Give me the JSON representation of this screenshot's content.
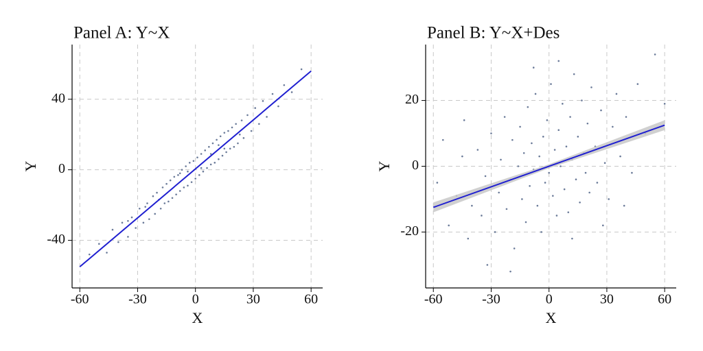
{
  "chart_data": [
    {
      "type": "scatter",
      "title": "Panel A: Y~X",
      "x_label": "X",
      "y_label": "Y",
      "xlim": [
        -64,
        66
      ],
      "ylim": [
        -67,
        71
      ],
      "xticks": [
        -60,
        -30,
        0,
        30,
        60
      ],
      "yticks": [
        -40,
        0,
        40
      ],
      "grid": true,
      "points": {
        "color": "#6b7b99",
        "x": [
          -55,
          -50,
          -46,
          -43,
          -40,
          -38,
          -35,
          -33,
          -31,
          -29,
          -27,
          -25,
          -24,
          -22,
          -21,
          -20,
          -18,
          -17,
          -16,
          -15,
          -14,
          -13,
          -12,
          -11,
          -10,
          -9,
          -8,
          -7,
          -6,
          -5,
          -4,
          -3,
          -2,
          -1,
          0,
          1,
          2,
          3,
          4,
          5,
          6,
          7,
          8,
          9,
          10,
          11,
          12,
          13,
          14,
          15,
          16,
          17,
          18,
          19,
          20,
          21,
          22,
          24,
          25,
          27,
          29,
          31,
          33,
          35,
          37,
          40,
          43,
          46,
          50,
          55,
          -26,
          -19,
          -8,
          3,
          12,
          23,
          -35,
          15,
          -4,
          8
        ],
        "y": [
          -48,
          -42,
          -47,
          -34,
          -41,
          -30,
          -38,
          -27,
          -33,
          -22,
          -30,
          -19,
          -28,
          -15,
          -25,
          -13,
          -22,
          -10,
          -19,
          -8,
          -18,
          -6,
          -16,
          -4,
          -14,
          -3,
          -12,
          0,
          -10,
          2,
          -9,
          4,
          -7,
          5,
          -5,
          7,
          -3,
          9,
          -1,
          11,
          1,
          13,
          3,
          15,
          4,
          17,
          6,
          19,
          8,
          21,
          10,
          22,
          12,
          24,
          13,
          26,
          15,
          28,
          18,
          31,
          22,
          35,
          26,
          39,
          30,
          43,
          36,
          48,
          44,
          57,
          -21,
          -17,
          -2,
          1,
          14,
          20,
          -29,
          12,
          -1,
          9
        ]
      },
      "fit": {
        "color": "#1f1fd0",
        "x": [
          -60,
          60
        ],
        "y": [
          -55,
          56
        ]
      }
    },
    {
      "type": "scatter",
      "title": "Panel B: Y~X+Des",
      "x_label": "X",
      "y_label": "Y",
      "xlim": [
        -64,
        66
      ],
      "ylim": [
        -37,
        37
      ],
      "xticks": [
        -60,
        -30,
        0,
        30,
        60
      ],
      "yticks": [
        -20,
        0,
        20
      ],
      "grid": true,
      "points": {
        "color": "#6b7b99",
        "x": [
          -58,
          -52,
          -48,
          -45,
          -42,
          -40,
          -37,
          -35,
          -33,
          -30,
          -28,
          -26,
          -25,
          -23,
          -22,
          -20,
          -19,
          -18,
          -16,
          -15,
          -14,
          -13,
          -12,
          -11,
          -10,
          -9,
          -8,
          -7,
          -6,
          -5,
          -4,
          -3,
          -2,
          -1,
          0,
          1,
          2,
          3,
          4,
          5,
          6,
          7,
          8,
          9,
          10,
          11,
          12,
          13,
          14,
          15,
          16,
          17,
          18,
          19,
          20,
          21,
          22,
          24,
          25,
          27,
          29,
          31,
          33,
          35,
          37,
          40,
          43,
          46,
          50,
          55,
          -32,
          -44,
          -20,
          5,
          28,
          -8,
          12,
          39,
          -55,
          60
        ],
        "y": [
          -5,
          -18,
          -9,
          3,
          -22,
          -12,
          5,
          -15,
          -3,
          10,
          -20,
          -8,
          2,
          15,
          -13,
          -4,
          8,
          -25,
          0,
          12,
          -10,
          4,
          -17,
          18,
          -6,
          7,
          -1,
          22,
          -12,
          3,
          -20,
          9,
          -5,
          14,
          -2,
          25,
          -9,
          5,
          -15,
          11,
          0,
          19,
          -7,
          6,
          -14,
          15,
          2,
          28,
          -4,
          9,
          -11,
          20,
          4,
          -2,
          13,
          -8,
          24,
          6,
          -5,
          17,
          1,
          -10,
          12,
          22,
          3,
          15,
          -2,
          25,
          10,
          34,
          -30,
          14,
          -32,
          32,
          -18,
          30,
          -22,
          -12,
          8,
          19
        ]
      },
      "fit": {
        "color": "#1f1fd0",
        "x": [
          -60,
          60
        ],
        "y": [
          -12.5,
          12.5
        ]
      },
      "band": {
        "color": "#c8c8c8",
        "x": [
          -60,
          0,
          60
        ],
        "lower": [
          -14,
          -0.6,
          11
        ],
        "upper": [
          -11,
          0.6,
          14
        ]
      }
    }
  ]
}
